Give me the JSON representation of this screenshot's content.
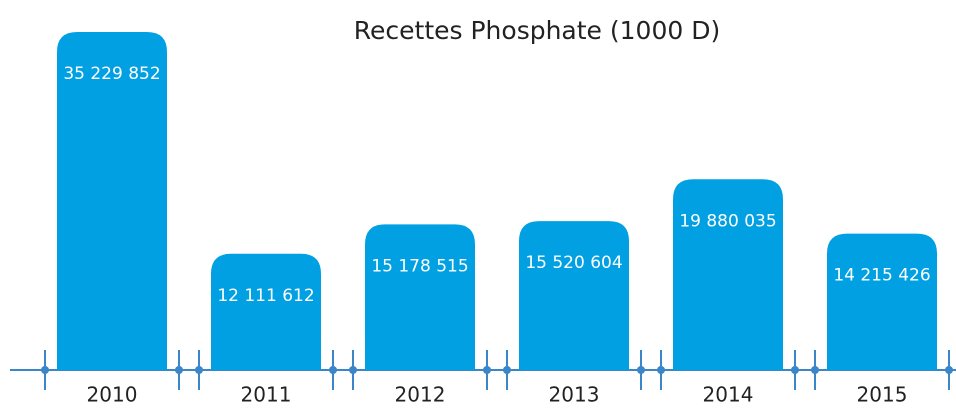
{
  "chart_data": {
    "type": "bar",
    "title": "Recettes Phosphate (1000 D)",
    "categories": [
      "2010",
      "2011",
      "2012",
      "2013",
      "2014",
      "2015"
    ],
    "values": [
      35229852,
      12111612,
      15178515,
      15520604,
      19880035,
      14215426
    ],
    "value_labels": [
      "35 229 852",
      "12 111 612",
      "15 178 515",
      "15 520 604",
      "19 880 035",
      "14 215 426"
    ],
    "color": "#00a0e3"
  }
}
